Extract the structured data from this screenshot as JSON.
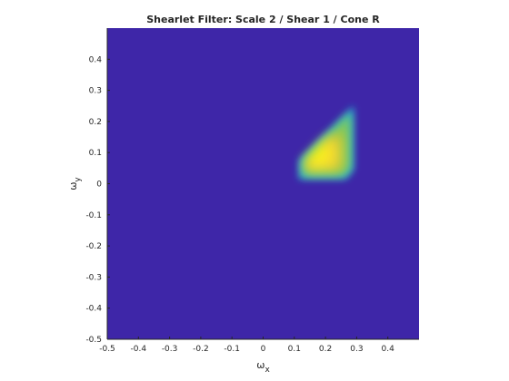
{
  "chart_data": {
    "type": "heatmap",
    "title": "Shearlet Filter: Scale 2 / Shear 1 / Cone R",
    "xlabel": "ω",
    "xlabel_sub": "x",
    "ylabel": "ω",
    "ylabel_sub": "y",
    "xlim": [
      -0.5,
      0.5
    ],
    "ylim": [
      -0.5,
      0.5
    ],
    "x_ticks": [
      -0.5,
      -0.4,
      -0.3,
      -0.2,
      -0.1,
      0,
      0.1,
      0.2,
      0.3,
      0.4
    ],
    "x_tick_labels": [
      "-0.5",
      "-0.4",
      "-0.3",
      "-0.2",
      "-0.1",
      "0",
      "0.1",
      "0.2",
      "0.3",
      "0.4"
    ],
    "y_ticks": [
      -0.5,
      -0.4,
      -0.3,
      -0.2,
      -0.1,
      0,
      0.1,
      0.2,
      0.3,
      0.4
    ],
    "y_tick_labels": [
      "-0.5",
      "-0.4",
      "-0.3",
      "-0.2",
      "-0.1",
      "0",
      "0.1",
      "0.2",
      "0.3",
      "0.4"
    ],
    "grid": false,
    "colormap": "parula",
    "colors": {
      "background_low": "#3e26a8",
      "mid": "#21b1d4",
      "green": "#82c95a",
      "high": "#f9fb0e"
    },
    "support": {
      "description": "sheared wedge in right cone",
      "vertices": [
        [
          0.115,
          0.015
        ],
        [
          0.115,
          0.075
        ],
        [
          0.215,
          0.175
        ],
        [
          0.29,
          0.25
        ],
        [
          0.29,
          0.045
        ],
        [
          0.265,
          0.015
        ]
      ],
      "core_vertices": [
        [
          0.135,
          0.04
        ],
        [
          0.135,
          0.075
        ],
        [
          0.2,
          0.145
        ],
        [
          0.255,
          0.165
        ],
        [
          0.255,
          0.055
        ],
        [
          0.245,
          0.04
        ]
      ],
      "peak_center": [
        0.18,
        0.09
      ]
    }
  }
}
